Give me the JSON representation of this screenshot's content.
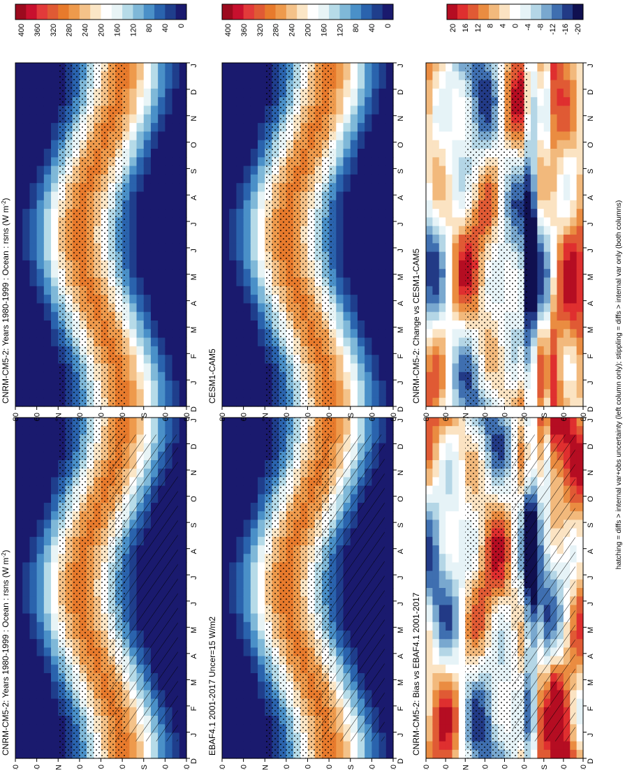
{
  "footnote": "hatching = diffs > internal var+obs uncertainty (left column only); stippling = diffs > internal var only (both columns)",
  "colors": {
    "abs_palette": [
      "#1a1a6e",
      "#1f3e8c",
      "#2a63ad",
      "#4a90c8",
      "#7fb8d8",
      "#b6dbe8",
      "#e8f4f6",
      "#ffffff",
      "#fbe6c6",
      "#f4c289",
      "#ee9a4c",
      "#e77a2c",
      "#e05a34",
      "#e23a3a",
      "#c8102e",
      "#9c0a1e",
      "#2050e0",
      "#1030d0"
    ],
    "diff_palette": [
      "#101050",
      "#223a86",
      "#3f6fb0",
      "#79a8cf",
      "#b4d6e6",
      "#e6f3f7",
      "#ffffff",
      "#fbe3c2",
      "#f2b97c",
      "#ea8c41",
      "#e05a34",
      "#df2f2f",
      "#b50d22",
      "#2050e0",
      "#0a20c8"
    ]
  },
  "panels": [
    {
      "id": "model-left",
      "title": "CNRM-CM5-2: Years 1980-1999 : Ocean : rsns (W m",
      "title_sup": "-2",
      "title_end": ")",
      "kind": "abs",
      "hatching": true,
      "stippling": true,
      "colorbar_ticks": [
        "400",
        "360",
        "320",
        "280",
        "240",
        "200",
        "160",
        "120",
        "80",
        "40",
        "0"
      ]
    },
    {
      "id": "model-right",
      "title": "CNRM-CM5-2: Years 1980-1999 : Ocean : rsns (W m",
      "title_sup": "-2",
      "title_end": ")",
      "kind": "abs",
      "hatching": false,
      "stippling": true,
      "colorbar_ticks": [
        "400",
        "360",
        "320",
        "280",
        "240",
        "200",
        "160",
        "120",
        "80",
        "40",
        "0"
      ]
    },
    {
      "id": "obs-left",
      "title": "EBAF4.1 2001-2017 Uncer=15 W/m2",
      "kind": "abs",
      "hatching": true,
      "stippling": true,
      "colorbar_ticks": [
        "400",
        "360",
        "320",
        "280",
        "240",
        "200",
        "160",
        "120",
        "80",
        "40",
        "0"
      ]
    },
    {
      "id": "ref-right",
      "title": "CESM1-CAM5",
      "kind": "abs",
      "hatching": false,
      "stippling": true,
      "colorbar_ticks": [
        "400",
        "360",
        "320",
        "280",
        "240",
        "200",
        "160",
        "120",
        "80",
        "40",
        "0"
      ]
    },
    {
      "id": "bias-left",
      "title": "CNRM-CM5-2: Bias vs EBAF4.1 2001-2017",
      "kind": "diff",
      "hatching": true,
      "stippling": true,
      "colorbar_ticks": [
        "20",
        "16",
        "12",
        "8",
        "4",
        "0",
        "-4",
        "-8",
        "-12",
        "-16",
        "-20"
      ]
    },
    {
      "id": "change-right",
      "title": "CNRM-CM5-2: Change vs CESM1-CAM5",
      "kind": "diff",
      "hatching": false,
      "stippling": true,
      "colorbar_ticks": [
        "20",
        "16",
        "12",
        "8",
        "4",
        "0",
        "-4",
        "-8",
        "-12",
        "-16",
        "-20"
      ]
    }
  ],
  "chart_data": {
    "type": "heatmap",
    "x": [
      "D",
      "J",
      "F",
      "M",
      "A",
      "M",
      "J",
      "J",
      "A",
      "S",
      "O",
      "N",
      "D",
      "J"
    ],
    "y_ticks": [
      "80",
      "60",
      "°N",
      "20",
      "0",
      "20",
      "°S",
      "60",
      "80"
    ],
    "abs_colorbar_levels": [
      400,
      360,
      320,
      280,
      240,
      200,
      160,
      120,
      80,
      40,
      0
    ],
    "diff_colorbar_levels": [
      20,
      16,
      12,
      8,
      4,
      0,
      -4,
      -8,
      -12,
      -16,
      -20
    ]
  }
}
